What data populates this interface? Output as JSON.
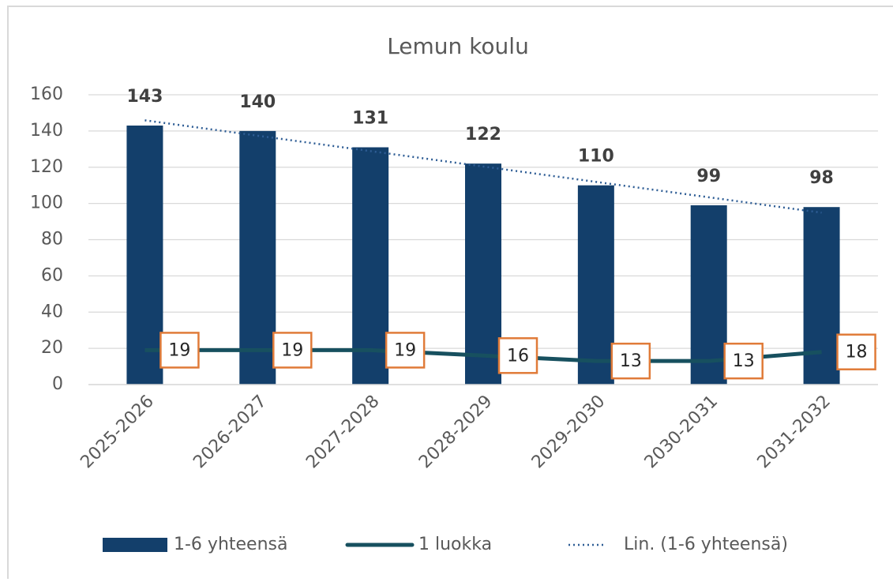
{
  "chart_data": {
    "type": "bar_line",
    "title": "Lemun koulu",
    "categories": [
      "2025-2026",
      "2026-2027",
      "2027-2028",
      "2028-2029",
      "2029-2030",
      "2030-2031",
      "2031-2032"
    ],
    "series": [
      {
        "name": "1-6 yhteensä",
        "type": "bar",
        "color": "#133f6b",
        "values": [
          143,
          140,
          131,
          122,
          110,
          99,
          98
        ]
      },
      {
        "name": "1 luokka",
        "type": "line",
        "color": "#17505f",
        "values": [
          19,
          19,
          19,
          16,
          13,
          13,
          18
        ]
      },
      {
        "name": "Lin. (1-6 yhteensä)",
        "type": "trendline",
        "color": "#2e5d95",
        "values": [
          145.9,
          137.4,
          128.9,
          120.4,
          111.9,
          103.4,
          94.9
        ]
      }
    ],
    "ylim": [
      0,
      160
    ],
    "yticks": [
      0,
      20,
      40,
      60,
      80,
      100,
      120,
      140,
      160
    ],
    "grid": true,
    "legend": "bottom"
  }
}
